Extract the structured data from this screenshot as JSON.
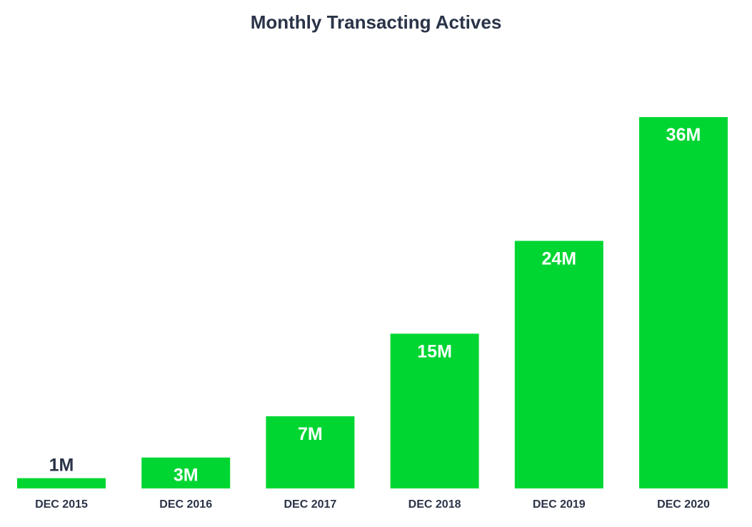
{
  "chart_data": {
    "type": "bar",
    "title": "Monthly Transacting Actives",
    "categories": [
      "DEC 2015",
      "DEC 2016",
      "DEC 2017",
      "DEC 2018",
      "DEC 2019",
      "DEC 2020"
    ],
    "values": [
      1,
      3,
      7,
      15,
      24,
      36
    ],
    "data_labels": [
      "1M",
      "3M",
      "7M",
      "15M",
      "24M",
      "36M"
    ],
    "unit": "M",
    "xlabel": "",
    "ylabel": "",
    "ylim": [
      0,
      36
    ],
    "grid": false,
    "legend": "none"
  },
  "colors": {
    "bar": "#00d632",
    "label_inside": "#ffffff",
    "label_outside": "#2a3348",
    "text": "#2a3348"
  }
}
